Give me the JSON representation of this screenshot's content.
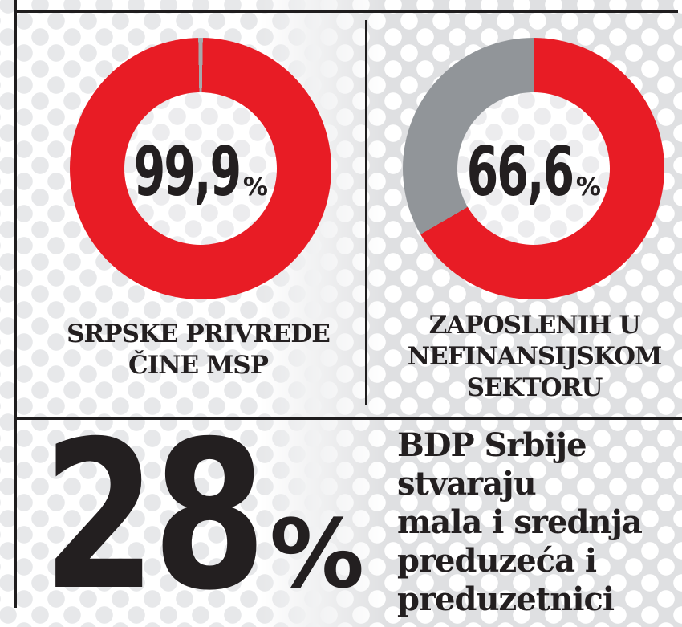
{
  "colors": {
    "accent_red": "#e81c25",
    "slice_gray": "#919599",
    "sliver_gray": "#a7a9ac",
    "ink": "#231f20",
    "halftone_light_dot": "#e7e8ea",
    "halftone_dark_base": "#dfe0e2"
  },
  "chart_data": [
    {
      "type": "pie",
      "subtype": "donut",
      "center_value": "99,9",
      "center_unit": "%",
      "caption_lines": [
        "SRPSKE PRIVREDE",
        "ČINE MSP"
      ],
      "segments": [
        {
          "value": 99.9,
          "color": "#e81c25"
        },
        {
          "value": 0.1,
          "color": "#a7a9ac"
        }
      ]
    },
    {
      "type": "pie",
      "subtype": "donut",
      "center_value": "66,6",
      "center_unit": "%",
      "caption_lines": [
        "ZAPOSLENIH U",
        "NEFINANSIJSKOM",
        "SEKTORU"
      ],
      "segments": [
        {
          "value": 66.6,
          "color": "#e81c25"
        },
        {
          "value": 33.4,
          "color": "#919599"
        }
      ]
    },
    {
      "type": "stat",
      "value": "28",
      "unit": "%",
      "text_lines": [
        "BDP Srbije",
        "stvaraju",
        "mala i srednja",
        "preduzeća i",
        "preduzetnici"
      ]
    }
  ]
}
